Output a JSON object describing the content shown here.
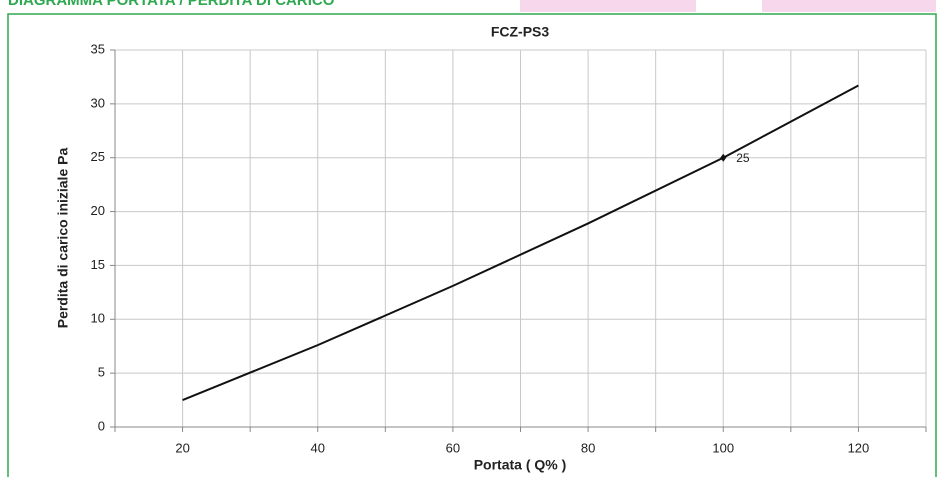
{
  "header": {
    "title": "DIAGRAMMA PORTATA / PERDITA DI CARICO"
  },
  "chart_data": {
    "type": "line",
    "title": "FCZ-PS3",
    "x_label": "Portata ( Q% )",
    "y_label": "Perdita di carico iniziale Pa",
    "x": [
      20,
      40,
      60,
      80,
      100,
      120
    ],
    "values": [
      2.5,
      7.6,
      13.1,
      18.9,
      25,
      31.7
    ],
    "color": "#111111",
    "labeled_point": 4,
    "xlim": [
      10,
      130
    ],
    "xticks": [
      20,
      40,
      60,
      80,
      100,
      120
    ],
    "xgrid": [
      10,
      20,
      30,
      40,
      50,
      60,
      70,
      80,
      90,
      100,
      110,
      120,
      130
    ],
    "ylim": [
      0,
      35
    ],
    "yticks": [
      0,
      5,
      10,
      15,
      20,
      25,
      30,
      35
    ],
    "grid": true
  }
}
